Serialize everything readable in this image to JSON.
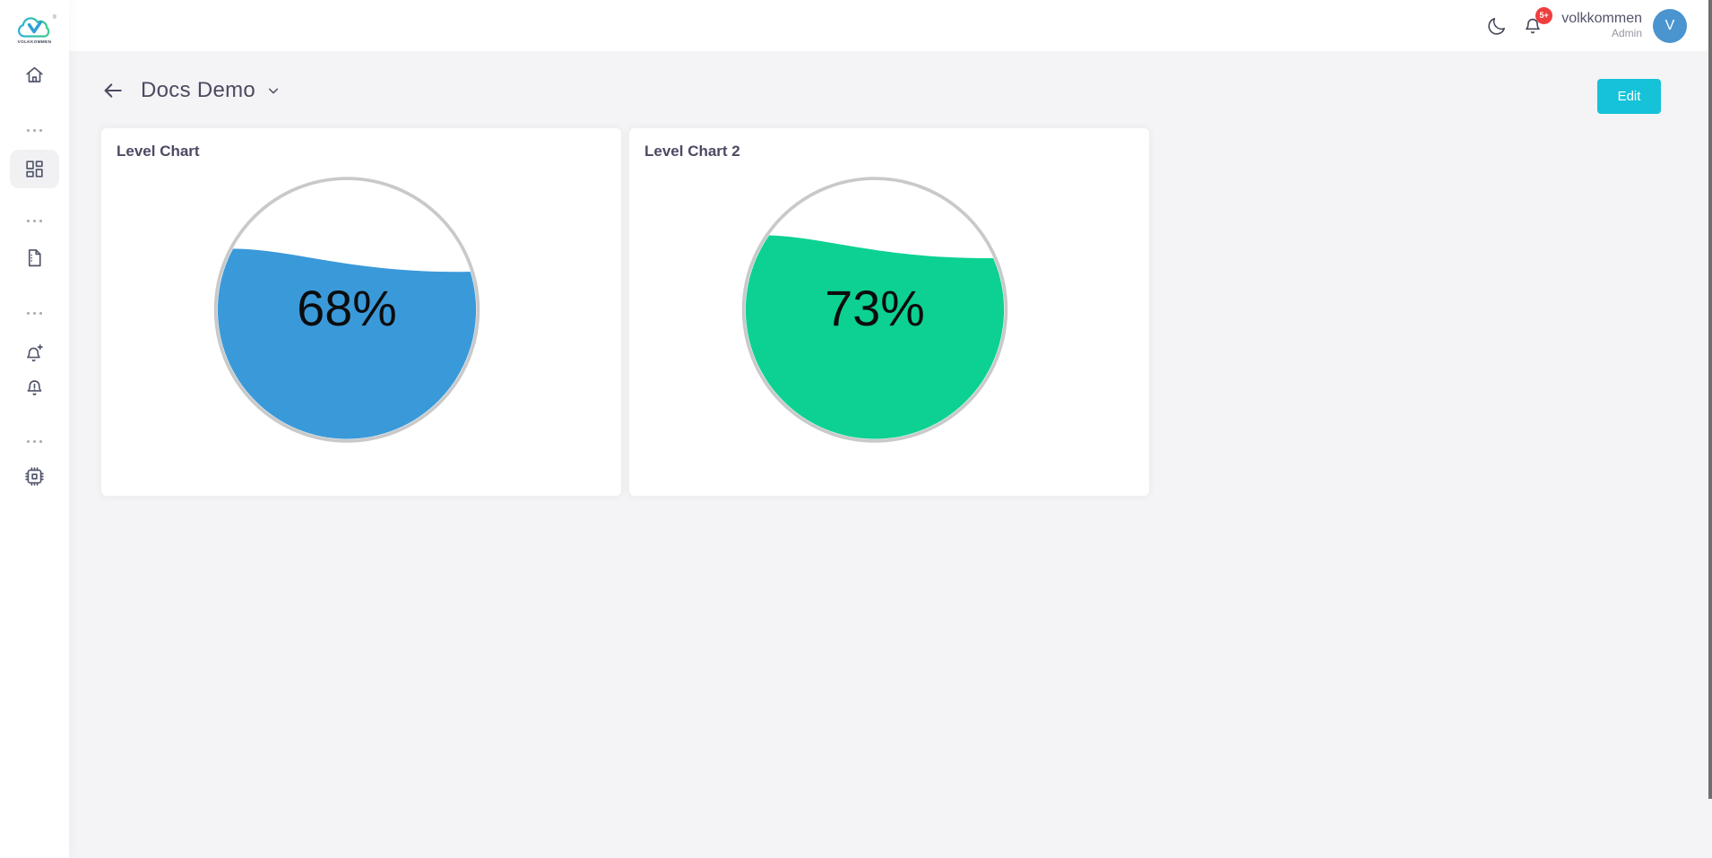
{
  "brand": {
    "name": "VOLKKOMMEN",
    "registered": "®"
  },
  "sidebar": {
    "items": [
      {
        "id": "home",
        "icon": "home-icon",
        "active": false
      },
      {
        "id": "dashboards",
        "icon": "dashboard-icon",
        "active": true
      },
      {
        "id": "documents",
        "icon": "document-icon",
        "active": false
      },
      {
        "id": "notification-add",
        "icon": "bell-plus-icon",
        "active": false
      },
      {
        "id": "alerts",
        "icon": "bell-alert-icon",
        "active": false
      },
      {
        "id": "settings",
        "icon": "chip-icon",
        "active": false
      }
    ]
  },
  "header": {
    "user_name": "volkkommen",
    "user_role": "Admin",
    "avatar_initial": "V",
    "notification_count": "5+"
  },
  "page": {
    "title": "Docs Demo",
    "edit_label": "Edit"
  },
  "cards": [
    {
      "title": "Level Chart",
      "value": 68,
      "display": "68%",
      "color": "#3a99d9"
    },
    {
      "title": "Level Chart 2",
      "value": 73,
      "display": "73%",
      "color": "#0cd193"
    }
  ],
  "chart_data": [
    {
      "type": "liquid-gauge",
      "title": "Level Chart",
      "value_percent": 68,
      "label": "68%",
      "fill_color": "#3a99d9",
      "ring_color": "#c9c9c9"
    },
    {
      "type": "liquid-gauge",
      "title": "Level Chart 2",
      "value_percent": 73,
      "label": "73%",
      "fill_color": "#0cd193",
      "ring_color": "#c9c9c9"
    }
  ],
  "colors": {
    "accent": "#16c2d8",
    "background": "#f4f4f6",
    "card": "#ffffff",
    "badge": "#f03e3e",
    "avatar": "#4a94d0",
    "ring": "#c9c9c9"
  }
}
